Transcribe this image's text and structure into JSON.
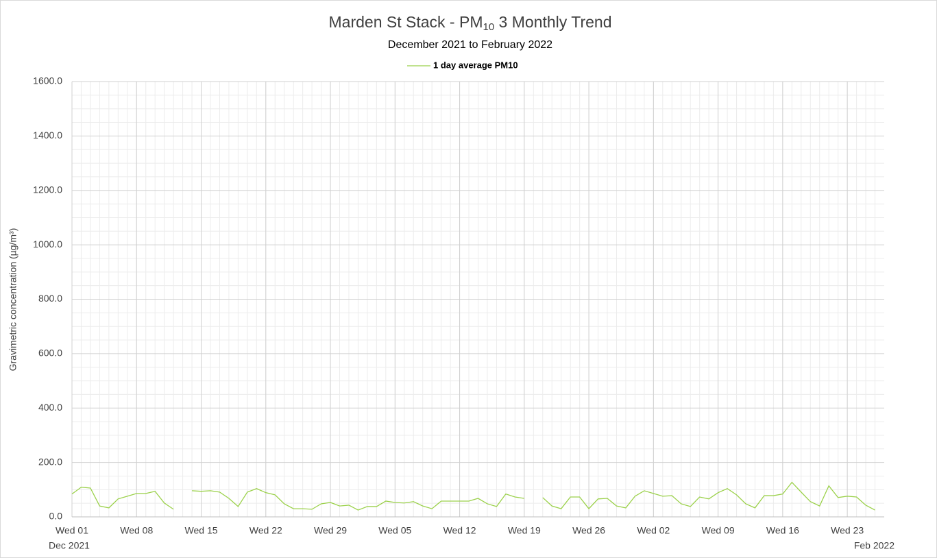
{
  "chart_data": {
    "type": "line",
    "title_parts": [
      "Marden St Stack - PM",
      "10",
      " 3 Monthly Trend"
    ],
    "subtitle": "December 2021 to February 2022",
    "y_label": "Gravimetric concentration (µg/m³)",
    "x_period_labels": [
      "Dec 2021",
      "Feb 2022"
    ],
    "x": [
      "2021-12-01",
      "2021-12-02",
      "2021-12-03",
      "2021-12-04",
      "2021-12-05",
      "2021-12-06",
      "2021-12-07",
      "2021-12-08",
      "2021-12-09",
      "2021-12-10",
      "2021-12-11",
      "2021-12-12",
      "2021-12-13",
      "2021-12-14",
      "2021-12-15",
      "2021-12-16",
      "2021-12-17",
      "2021-12-18",
      "2021-12-19",
      "2021-12-20",
      "2021-12-21",
      "2021-12-22",
      "2021-12-23",
      "2021-12-24",
      "2021-12-25",
      "2021-12-26",
      "2021-12-27",
      "2021-12-28",
      "2021-12-29",
      "2021-12-30",
      "2021-12-31",
      "2022-01-01",
      "2022-01-02",
      "2022-01-03",
      "2022-01-04",
      "2022-01-05",
      "2022-01-06",
      "2022-01-07",
      "2022-01-08",
      "2022-01-09",
      "2022-01-10",
      "2022-01-11",
      "2022-01-12",
      "2022-01-13",
      "2022-01-14",
      "2022-01-15",
      "2022-01-16",
      "2022-01-17",
      "2022-01-18",
      "2022-01-19",
      "2022-01-20",
      "2022-01-21",
      "2022-01-22",
      "2022-01-23",
      "2022-01-24",
      "2022-01-25",
      "2022-01-26",
      "2022-01-27",
      "2022-01-28",
      "2022-01-29",
      "2022-01-30",
      "2022-01-31",
      "2022-02-01",
      "2022-02-02",
      "2022-02-03",
      "2022-02-04",
      "2022-02-05",
      "2022-02-06",
      "2022-02-07",
      "2022-02-08",
      "2022-02-09",
      "2022-02-10",
      "2022-02-11",
      "2022-02-12",
      "2022-02-13",
      "2022-02-14",
      "2022-02-15",
      "2022-02-16",
      "2022-02-17",
      "2022-02-18",
      "2022-02-19",
      "2022-02-20",
      "2022-02-21",
      "2022-02-22",
      "2022-02-23",
      "2022-02-24",
      "2022-02-25",
      "2022-02-26"
    ],
    "series": [
      {
        "name": "1 day average PM10",
        "color": "#9bd14a",
        "values": [
          84,
          109,
          106,
          40,
          33,
          66,
          76,
          86,
          86,
          94,
          51,
          28,
          null,
          96,
          94,
          96,
          91,
          68,
          38,
          91,
          104,
          89,
          81,
          48,
          30,
          30,
          28,
          48,
          53,
          40,
          43,
          25,
          38,
          38,
          58,
          53,
          51,
          56,
          40,
          30,
          58,
          58,
          58,
          58,
          68,
          48,
          38,
          84,
          73,
          68,
          null,
          71,
          40,
          30,
          73,
          73,
          30,
          66,
          68,
          40,
          33,
          76,
          96,
          86,
          76,
          78,
          48,
          38,
          73,
          66,
          89,
          104,
          81,
          48,
          33,
          78,
          78,
          84,
          127,
          91,
          56,
          40,
          114,
          71,
          76,
          73,
          43,
          25
        ]
      }
    ],
    "xlim": [
      "2021-12-01",
      "2022-02-27"
    ],
    "xticks": [
      {
        "value": "2021-12-01",
        "label": "Wed 01"
      },
      {
        "value": "2021-12-08",
        "label": "Wed 08"
      },
      {
        "value": "2021-12-15",
        "label": "Wed 15"
      },
      {
        "value": "2021-12-22",
        "label": "Wed 22"
      },
      {
        "value": "2021-12-29",
        "label": "Wed 29"
      },
      {
        "value": "2022-01-05",
        "label": "Wed 05"
      },
      {
        "value": "2022-01-12",
        "label": "Wed 12"
      },
      {
        "value": "2022-01-19",
        "label": "Wed 19"
      },
      {
        "value": "2022-01-26",
        "label": "Wed 26"
      },
      {
        "value": "2022-02-02",
        "label": "Wed 02"
      },
      {
        "value": "2022-02-09",
        "label": "Wed 09"
      },
      {
        "value": "2022-02-16",
        "label": "Wed 16"
      },
      {
        "value": "2022-02-23",
        "label": "Wed 23"
      }
    ],
    "ylim": [
      0,
      1600
    ],
    "yticks": [
      {
        "value": 0,
        "label": "0.0"
      },
      {
        "value": 200,
        "label": "200.0"
      },
      {
        "value": 400,
        "label": "400.0"
      },
      {
        "value": 600,
        "label": "600.0"
      },
      {
        "value": 800,
        "label": "800.0"
      },
      {
        "value": 1000,
        "label": "1000.0"
      },
      {
        "value": 1200,
        "label": "1200.0"
      },
      {
        "value": 1400,
        "label": "1400.0"
      },
      {
        "value": 1600,
        "label": "1600.0"
      }
    ],
    "minor_yticks": [
      50,
      100,
      150,
      250,
      300,
      350,
      450,
      500,
      550,
      650,
      700,
      750,
      850,
      900,
      950,
      1050,
      1100,
      1150,
      1250,
      1300,
      1350,
      1450,
      1500,
      1550
    ],
    "grid": true,
    "legend": "top"
  }
}
